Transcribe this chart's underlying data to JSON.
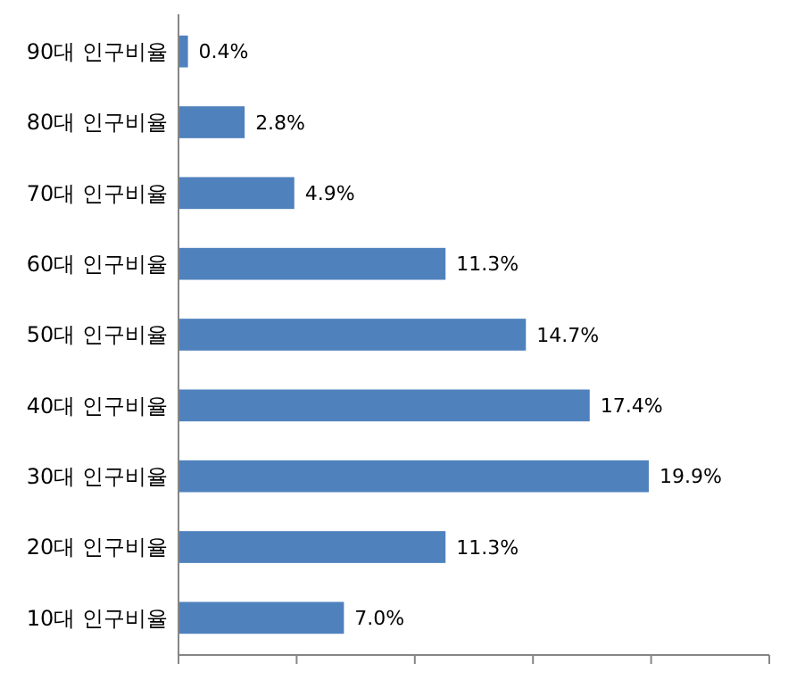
{
  "chart_data": {
    "type": "bar",
    "orientation": "horizontal",
    "categories": [
      "90대 인구비율",
      "80대 인구비율",
      "70대 인구비율",
      "60대 인구비율",
      "50대 인구비율",
      "40대 인구비율",
      "30대 인구비율",
      "20대 인구비율",
      "10대 인구비율"
    ],
    "values": [
      0.4,
      2.8,
      4.9,
      11.3,
      14.7,
      17.4,
      19.9,
      11.3,
      7.0
    ],
    "value_labels": [
      "0.4%",
      "2.8%",
      "4.9%",
      "11.3%",
      "14.7%",
      "17.4%",
      "19.9%",
      "11.3%",
      "7.0%"
    ],
    "color": "#4f81bd",
    "xlim": [
      0,
      25
    ],
    "xticks": [
      {
        "value": 0,
        "label": null
      },
      {
        "value": 5,
        "label": null
      },
      {
        "value": 10,
        "label": null
      },
      {
        "value": 15,
        "label": null
      },
      {
        "value": 20,
        "label": null
      },
      {
        "value": 25,
        "label": null
      }
    ],
    "tick_labels": "y"
  }
}
